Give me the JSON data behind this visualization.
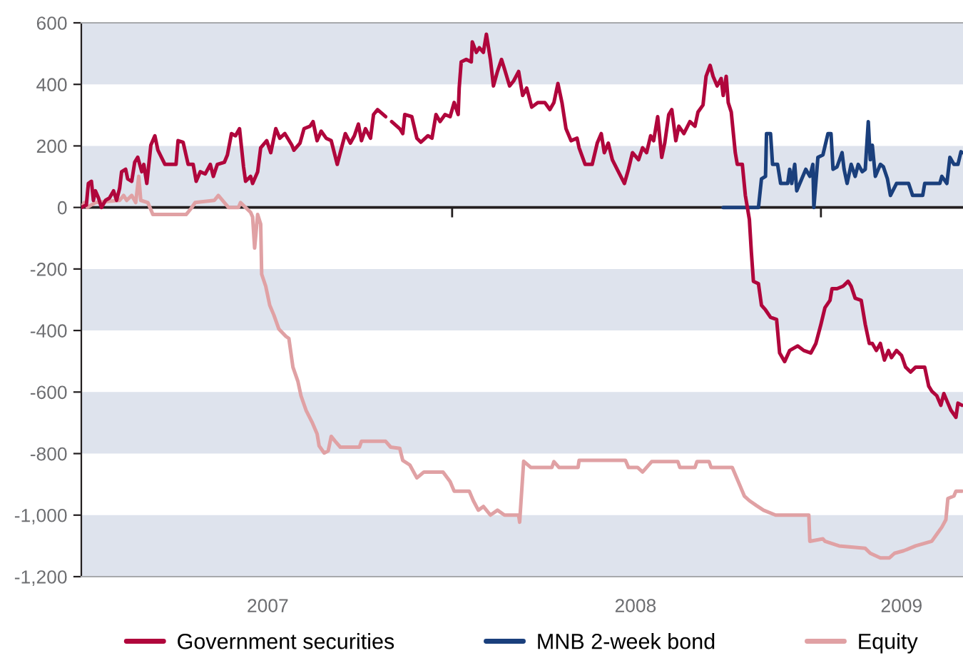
{
  "chart_data": {
    "type": "line",
    "xlim": [
      "2006-12-29",
      "2009-05-22"
    ],
    "ylim": [
      -1200,
      600
    ],
    "xticks": [
      {
        "value": "2007-07-02",
        "label": "2007"
      },
      {
        "value": "2008-01-01",
        "label": null
      },
      {
        "value": "2008-07-01",
        "label": "2008"
      },
      {
        "value": "2009-01-01",
        "label": null
      },
      {
        "value": "2009-03-22",
        "label": "2009"
      }
    ],
    "yticks": [
      {
        "value": -1200,
        "label": "-1,200"
      },
      {
        "value": -1000,
        "label": "-1,000"
      },
      -800,
      -600,
      -400,
      -200,
      0,
      200,
      400,
      600
    ],
    "bands": [
      {
        "axis": "y",
        "from": 400,
        "to": 600,
        "color": "#dee3ed"
      },
      {
        "axis": "y",
        "from": 0,
        "to": 200,
        "color": "#dee3ed"
      },
      {
        "axis": "y",
        "from": -400,
        "to": -200,
        "color": "#dee3ed"
      },
      {
        "axis": "y",
        "from": -800,
        "to": -600,
        "color": "#dee3ed"
      },
      {
        "axis": "y",
        "from": -1200,
        "to": -1000,
        "color": "#dee3ed"
      }
    ],
    "ref_lines": [
      {
        "axis": "y",
        "value": 0,
        "color": "#231f20"
      }
    ],
    "legend": "bottom",
    "series": [
      {
        "name": "Government securities",
        "color": "#b0063c",
        "x": [
          "2006-12-29",
          "2007-01-03",
          "2007-01-05",
          "2007-01-08",
          "2007-01-10",
          "2007-01-12",
          "2007-01-15",
          "2007-01-18",
          "2007-01-22",
          "2007-01-26",
          "2007-01-30",
          "2007-02-02",
          "2007-02-05",
          "2007-02-07",
          "2007-02-11",
          "2007-02-13",
          "2007-02-17",
          "2007-02-20",
          "2007-02-23",
          "2007-02-27",
          "2007-03-01",
          "2007-03-04",
          "2007-03-08",
          "2007-03-12",
          "2007-03-15",
          "2007-03-22",
          "2007-04-02",
          "2007-04-04",
          "2007-04-09",
          "2007-04-14",
          "2007-04-19",
          "2007-04-22",
          "2007-04-26",
          "2007-05-01",
          "2007-05-06",
          "2007-05-09",
          "2007-05-13",
          "2007-05-20",
          "2007-05-23",
          "2007-05-27",
          "2007-05-31",
          "2007-06-04",
          "2007-06-08",
          "2007-06-10",
          "2007-06-15",
          "2007-06-17",
          "2007-06-22",
          "2007-06-25",
          "2007-07-01",
          "2007-07-05",
          "2007-07-10",
          "2007-07-14",
          "2007-07-19",
          "2007-07-26",
          "2007-07-28",
          "2007-08-03",
          "2007-08-07",
          "2007-08-13",
          "2007-08-16",
          "2007-08-20",
          "2007-08-24",
          "2007-08-29",
          "2007-09-03",
          "2007-09-09",
          "2007-09-12",
          "2007-09-17",
          "2007-09-22",
          "2007-09-26",
          "2007-09-30",
          "2007-10-03",
          "2007-10-07",
          "2007-10-12",
          "2007-10-15",
          "2007-10-19",
          "2007-10-27",
          "2007-10-30",
          "2007-11-02",
          "2007-11-10",
          "2007-11-13",
          "2007-11-15",
          "2007-11-22",
          "2007-11-27",
          "2007-12-01",
          "2007-12-08",
          "2007-12-12",
          "2007-12-16",
          "2007-12-20",
          "2007-12-25",
          "2007-12-30",
          "2008-01-03",
          "2008-01-07",
          "2008-01-08",
          "2008-01-10",
          "2008-01-15",
          "2008-01-20",
          "2008-01-21",
          "2008-01-25",
          "2008-01-28",
          "2008-02-01",
          "2008-02-04",
          "2008-02-08",
          "2008-02-11",
          "2008-02-15",
          "2008-02-19",
          "2008-02-22",
          "2008-02-27",
          "2008-03-02",
          "2008-03-07",
          "2008-03-11",
          "2008-03-15",
          "2008-03-20",
          "2008-03-26",
          "2008-04-02",
          "2008-04-07",
          "2008-04-11",
          "2008-04-15",
          "2008-04-19",
          "2008-04-23",
          "2008-04-28",
          "2008-05-04",
          "2008-05-06",
          "2008-05-12",
          "2008-05-19",
          "2008-05-24",
          "2008-05-28",
          "2008-05-31",
          "2008-06-04",
          "2008-06-08",
          "2008-06-14",
          "2008-06-20",
          "2008-06-24",
          "2008-06-28",
          "2008-07-04",
          "2008-07-08",
          "2008-07-12",
          "2008-07-16",
          "2008-07-19",
          "2008-07-23",
          "2008-07-27",
          "2008-07-30",
          "2008-08-03",
          "2008-08-06",
          "2008-08-10",
          "2008-08-13",
          "2008-08-18",
          "2008-08-24",
          "2008-08-29",
          "2008-09-01",
          "2008-09-06",
          "2008-09-09",
          "2008-09-13",
          "2008-09-16",
          "2008-09-20",
          "2008-09-24",
          "2008-09-26",
          "2008-09-29",
          "2008-10-01",
          "2008-10-04",
          "2008-10-08",
          "2008-10-10",
          "2008-10-15",
          "2008-10-18",
          "2008-10-22",
          "2008-10-24",
          "2008-10-26",
          "2008-10-31",
          "2008-11-03",
          "2008-11-07",
          "2008-11-12",
          "2008-11-18",
          "2008-11-21",
          "2008-11-26",
          "2008-12-01",
          "2008-12-09",
          "2008-12-15",
          "2008-12-22",
          "2008-12-27",
          "2009-01-01",
          "2009-01-05",
          "2009-01-10",
          "2009-01-12",
          "2009-01-17",
          "2009-01-23",
          "2009-01-28",
          "2009-01-31",
          "2009-02-04",
          "2009-02-10",
          "2009-02-14",
          "2009-02-18",
          "2009-02-21",
          "2009-02-25",
          "2009-03-01",
          "2009-03-05",
          "2009-03-09",
          "2009-03-12",
          "2009-03-17",
          "2009-03-22",
          "2009-03-26",
          "2009-03-31",
          "2009-04-05",
          "2009-04-14",
          "2009-04-18",
          "2009-04-21",
          "2009-04-26",
          "2009-04-30",
          "2009-05-03",
          "2009-05-07",
          "2009-05-10",
          "2009-05-15",
          "2009-05-17",
          "2009-05-21"
        ],
        "values": [
          0,
          8,
          78,
          85,
          23,
          54,
          31,
          0,
          23,
          31,
          54,
          23,
          62,
          116,
          124,
          93,
          85,
          147,
          163,
          116,
          140,
          78,
          202,
          233,
          186,
          140,
          140,
          217,
          212,
          140,
          140,
          85,
          116,
          109,
          140,
          101,
          140,
          147,
          171,
          240,
          233,
          256,
          132,
          85,
          101,
          78,
          116,
          194,
          217,
          178,
          256,
          225,
          240,
          202,
          186,
          209,
          256,
          264,
          279,
          217,
          248,
          225,
          217,
          140,
          178,
          240,
          209,
          233,
          271,
          217,
          256,
          225,
          302,
          318,
          295,
          null,
          279,
          256,
          240,
          302,
          295,
          225,
          212,
          233,
          225,
          302,
          279,
          302,
          295,
          341,
          302,
          388,
          473,
          481,
          473,
          538,
          504,
          519,
          504,
          563,
          481,
          395,
          442,
          481,
          450,
          395,
          411,
          442,
          364,
          388,
          326,
          341,
          341,
          318,
          341,
          403,
          341,
          256,
          217,
          225,
          194,
          140,
          140,
          209,
          240,
          178,
          209,
          155,
          116,
          78,
          124,
          178,
          155,
          194,
          178,
          233,
          217,
          295,
          163,
          209,
          302,
          318,
          217,
          264,
          240,
          279,
          264,
          310,
          333,
          426,
          462,
          426,
          395,
          419,
          364,
          426,
          341,
          310,
          178,
          140,
          140,
          39,
          -39,
          -147,
          -240,
          -248,
          -318,
          -333,
          -357,
          -364,
          -473,
          -501,
          -465,
          -450,
          -465,
          -473,
          -442,
          -380,
          -326,
          -302,
          -264,
          -264,
          -256,
          -240,
          -256,
          -295,
          -302,
          -380,
          -442,
          -442,
          -465,
          -442,
          -496,
          -465,
          -488,
          -465,
          -481,
          -519,
          -535,
          -519,
          -519,
          -581,
          -597,
          -612,
          -643,
          -605,
          -636,
          -659,
          -682,
          -636,
          -643
        ]
      },
      {
        "name": "MNB 2-week bond",
        "color": "#1a3f7c",
        "x": [
          "2008-09-26",
          "2008-10-31",
          "2008-11-03",
          "2008-11-07",
          "2008-11-08",
          "2008-11-12",
          "2008-11-14",
          "2008-11-19",
          "2008-11-22",
          "2008-11-29",
          "2008-12-01",
          "2008-12-03",
          "2008-12-06",
          "2008-12-08",
          "2008-12-13",
          "2008-12-17",
          "2008-12-21",
          "2008-12-24",
          "2008-12-25",
          "2008-12-29",
          "2009-01-03",
          "2009-01-08",
          "2009-01-11",
          "2009-01-13",
          "2009-01-17",
          "2009-01-22",
          "2009-01-24",
          "2009-01-27",
          "2009-01-31",
          "2009-02-04",
          "2009-02-07",
          "2009-02-11",
          "2009-02-14",
          "2009-02-17",
          "2009-02-19",
          "2009-02-21",
          "2009-02-24",
          "2009-03-01",
          "2009-03-04",
          "2009-03-08",
          "2009-03-11",
          "2009-03-17",
          "2009-03-29",
          "2009-04-02",
          "2009-04-12",
          "2009-04-14",
          "2009-04-29",
          "2009-05-01",
          "2009-05-06",
          "2009-05-09",
          "2009-05-13",
          "2009-05-17",
          "2009-05-20",
          "2009-05-21"
        ],
        "values": [
          0,
          0,
          93,
          101,
          240,
          240,
          140,
          140,
          78,
          78,
          124,
          78,
          140,
          54,
          93,
          124,
          101,
          140,
          0,
          163,
          171,
          240,
          240,
          124,
          132,
          178,
          124,
          78,
          140,
          101,
          140,
          116,
          124,
          279,
          155,
          202,
          101,
          140,
          132,
          93,
          39,
          78,
          78,
          39,
          39,
          78,
          78,
          101,
          78,
          163,
          140,
          140,
          181,
          178
        ]
      },
      {
        "name": "Equity",
        "color": "#e0a1a4",
        "x": [
          "2006-12-29",
          "2007-01-01",
          "2007-01-04",
          "2007-01-08",
          "2007-01-12",
          "2007-02-05",
          "2007-02-09",
          "2007-02-12",
          "2007-02-17",
          "2007-02-21",
          "2007-02-24",
          "2007-02-26",
          "2007-03-05",
          "2007-03-10",
          "2007-04-12",
          "2007-04-17",
          "2007-04-21",
          "2007-05-10",
          "2007-05-14",
          "2007-05-20",
          "2007-05-24",
          "2007-06-03",
          "2007-06-05",
          "2007-06-10",
          "2007-06-15",
          "2007-06-17",
          "2007-06-19",
          "2007-06-22",
          "2007-06-25",
          "2007-06-26",
          "2007-06-30",
          "2007-07-04",
          "2007-07-08",
          "2007-07-13",
          "2007-07-20",
          "2007-07-23",
          "2007-07-27",
          "2007-08-01",
          "2007-08-04",
          "2007-08-09",
          "2007-08-15",
          "2007-08-20",
          "2007-08-22",
          "2007-08-27",
          "2007-08-31",
          "2007-09-03",
          "2007-09-07",
          "2007-09-12",
          "2007-10-01",
          "2007-10-03",
          "2007-10-27",
          "2007-11-01",
          "2007-11-10",
          "2007-11-13",
          "2007-11-20",
          "2007-11-27",
          "2007-12-04",
          "2007-12-23",
          "2007-12-30",
          "2008-01-03",
          "2008-01-18",
          "2008-01-22",
          "2008-01-27",
          "2008-02-01",
          "2008-02-08",
          "2008-02-15",
          "2008-02-22",
          "2008-03-07",
          "2008-03-08",
          "2008-03-12",
          "2008-03-19",
          "2008-04-09",
          "2008-04-11",
          "2008-04-16",
          "2008-05-05",
          "2008-05-06",
          "2008-06-21",
          "2008-06-24",
          "2008-07-03",
          "2008-07-08",
          "2008-07-17",
          "2008-08-12",
          "2008-08-14",
          "2008-08-29",
          "2008-08-31",
          "2008-09-12",
          "2008-09-14",
          "2008-10-05",
          "2008-10-12",
          "2008-10-17",
          "2008-10-22",
          "2008-10-29",
          "2008-11-05",
          "2008-11-17",
          "2008-12-20",
          "2008-12-21",
          "2009-01-03",
          "2009-01-05",
          "2009-01-19",
          "2009-02-14",
          "2009-02-19",
          "2009-03-01",
          "2009-03-10",
          "2009-03-15",
          "2009-03-24",
          "2009-04-05",
          "2009-04-21",
          "2009-04-26",
          "2009-05-01",
          "2009-05-05",
          "2009-05-07",
          "2009-05-13",
          "2009-05-15",
          "2009-05-21"
        ],
        "values": [
          0,
          16,
          0,
          8,
          16,
          23,
          39,
          23,
          39,
          16,
          101,
          23,
          16,
          -23,
          -23,
          -3,
          16,
          23,
          39,
          16,
          0,
          0,
          16,
          0,
          -16,
          -31,
          -132,
          -23,
          -54,
          -217,
          -256,
          -318,
          -349,
          -395,
          -419,
          -426,
          -519,
          -566,
          -612,
          -659,
          -698,
          -736,
          -775,
          -798,
          -791,
          -744,
          -760,
          -779,
          -779,
          -760,
          -760,
          -779,
          -783,
          -822,
          -837,
          -879,
          -860,
          -860,
          -891,
          -922,
          -922,
          -953,
          -984,
          -972,
          -1000,
          -984,
          -1000,
          -1000,
          -1023,
          -825,
          -845,
          -845,
          -826,
          -845,
          -845,
          -822,
          -822,
          -845,
          -845,
          -860,
          -826,
          -826,
          -845,
          -845,
          -826,
          -826,
          -845,
          -845,
          -899,
          -938,
          -953,
          -969,
          -984,
          -1000,
          -1000,
          -1085,
          -1077,
          -1085,
          -1100,
          -1108,
          -1124,
          -1139,
          -1139,
          -1124,
          -1116,
          -1100,
          -1085,
          -1062,
          -1039,
          -1015,
          -946,
          -938,
          -922,
          -922
        ]
      }
    ]
  }
}
